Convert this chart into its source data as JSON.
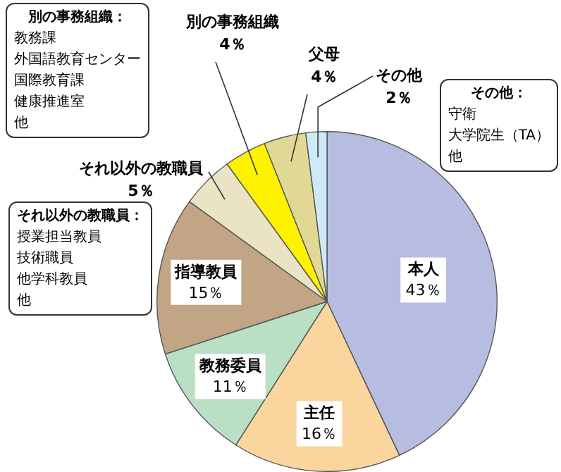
{
  "chart_data": {
    "type": "pie",
    "categories": [
      "本人",
      "主任",
      "教務委員",
      "指導教員",
      "それ以外の教職員",
      "別の事務組織",
      "父母",
      "その他"
    ],
    "values": [
      43,
      16,
      11,
      15,
      5,
      4,
      4,
      2
    ],
    "colors": [
      "#b6bde0",
      "#fad69e",
      "#b9dfc4",
      "#c1a584",
      "#ebe4c4",
      "#fff200",
      "#e1d896",
      "#cfe9f7"
    ],
    "value_labels": [
      "43％",
      "16％",
      "11％",
      "15％",
      "5％",
      "4％",
      "4％",
      "2％"
    ],
    "annotations": [
      "別の事務組織：",
      "教務課",
      "外国語教育センター",
      "国際教育課",
      "健康推進室",
      "他",
      "その他：",
      "守衛",
      "大学院生（TA）",
      "他",
      "それ以外の教職員：",
      "授業担当教員",
      "技術職員",
      "他学科教員",
      "他"
    ]
  }
}
